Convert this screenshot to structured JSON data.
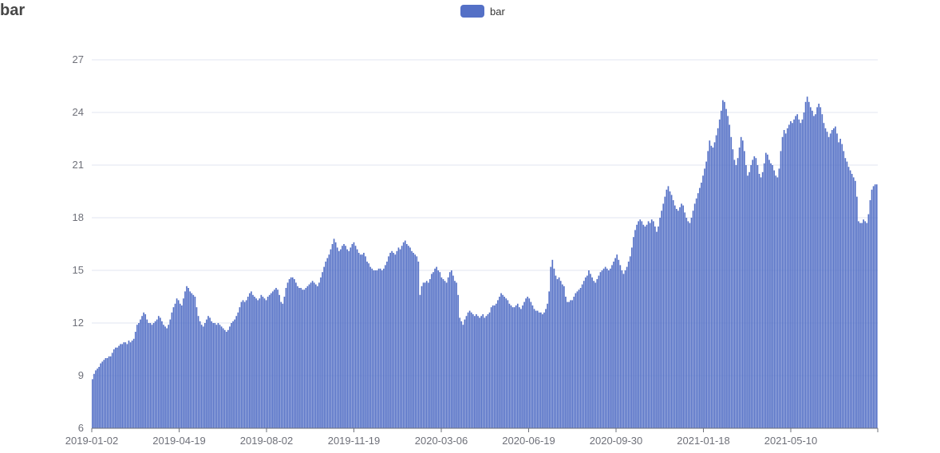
{
  "chart_data": {
    "type": "bar",
    "title": "bar",
    "legend": {
      "position": "top-center",
      "entries": [
        "bar"
      ]
    },
    "series": [
      {
        "name": "bar",
        "color": "#5470c6"
      }
    ],
    "xlabel": "",
    "ylabel": "",
    "x_range": [
      "2019-01-02",
      "2021-08-20"
    ],
    "x_tick_labels": [
      "2019-01-02",
      "2019-04-19",
      "2019-08-02",
      "2019-11-19",
      "2020-03-06",
      "2020-06-19",
      "2020-09-30",
      "2021-01-18",
      "2021-05-10"
    ],
    "ylim": [
      6,
      27
    ],
    "y_ticks": [
      6,
      9,
      12,
      15,
      18,
      21,
      24,
      27
    ],
    "grid": true,
    "values": [
      8.8,
      9.1,
      9.3,
      9.4,
      9.5,
      9.7,
      9.8,
      9.9,
      10.0,
      10.0,
      10.1,
      10.1,
      10.3,
      10.5,
      10.6,
      10.6,
      10.7,
      10.8,
      10.8,
      10.9,
      10.9,
      10.8,
      11.0,
      10.9,
      11.0,
      11.1,
      11.5,
      11.9,
      12.0,
      12.2,
      12.4,
      12.6,
      12.5,
      12.2,
      12.0,
      12.0,
      11.9,
      12.0,
      12.1,
      12.2,
      12.4,
      12.3,
      12.1,
      11.9,
      11.8,
      11.7,
      11.9,
      12.2,
      12.6,
      12.9,
      13.1,
      13.4,
      13.3,
      13.1,
      13.0,
      13.4,
      13.8,
      14.1,
      14.0,
      13.8,
      13.7,
      13.6,
      13.5,
      12.9,
      12.4,
      12.1,
      11.9,
      11.8,
      12.0,
      12.2,
      12.4,
      12.3,
      12.1,
      12.0,
      12.0,
      11.9,
      12.0,
      11.9,
      11.8,
      11.7,
      11.6,
      11.5,
      11.6,
      11.8,
      12.0,
      12.1,
      12.2,
      12.4,
      12.6,
      12.9,
      13.2,
      13.3,
      13.2,
      13.3,
      13.5,
      13.7,
      13.8,
      13.6,
      13.5,
      13.4,
      13.3,
      13.4,
      13.6,
      13.5,
      13.4,
      13.3,
      13.5,
      13.6,
      13.7,
      13.8,
      13.9,
      14.0,
      13.9,
      13.6,
      13.2,
      13.1,
      13.5,
      14.0,
      14.3,
      14.5,
      14.6,
      14.6,
      14.5,
      14.3,
      14.1,
      14.0,
      14.0,
      13.9,
      13.9,
      14.0,
      14.1,
      14.2,
      14.3,
      14.4,
      14.3,
      14.2,
      14.1,
      14.3,
      14.6,
      14.9,
      15.2,
      15.5,
      15.7,
      15.9,
      16.2,
      16.5,
      16.8,
      16.6,
      16.3,
      16.1,
      16.2,
      16.4,
      16.5,
      16.4,
      16.2,
      16.1,
      16.3,
      16.5,
      16.6,
      16.4,
      16.2,
      16.0,
      15.9,
      15.9,
      16.0,
      15.8,
      15.5,
      15.4,
      15.2,
      15.1,
      15.0,
      15.0,
      15.0,
      15.1,
      15.1,
      15.0,
      15.1,
      15.3,
      15.5,
      15.8,
      16.0,
      16.1,
      16.0,
      15.9,
      16.1,
      16.3,
      16.2,
      16.4,
      16.6,
      16.7,
      16.5,
      16.4,
      16.3,
      16.1,
      16.0,
      15.9,
      15.8,
      15.5,
      13.6,
      14.1,
      14.3,
      14.3,
      14.4,
      14.3,
      14.5,
      14.8,
      14.9,
      15.1,
      15.2,
      15.0,
      14.9,
      14.6,
      14.5,
      14.4,
      14.3,
      14.6,
      14.9,
      15.0,
      14.7,
      14.4,
      14.3,
      13.6,
      12.3,
      12.1,
      11.9,
      12.2,
      12.4,
      12.6,
      12.7,
      12.6,
      12.5,
      12.4,
      12.5,
      12.4,
      12.3,
      12.4,
      12.5,
      12.3,
      12.4,
      12.5,
      12.6,
      12.9,
      13.0,
      13.0,
      13.1,
      13.3,
      13.5,
      13.7,
      13.6,
      13.5,
      13.4,
      13.3,
      13.1,
      13.0,
      12.9,
      12.9,
      13.0,
      13.1,
      12.9,
      12.8,
      13.0,
      13.2,
      13.4,
      13.5,
      13.4,
      13.2,
      13.0,
      12.8,
      12.7,
      12.7,
      12.6,
      12.6,
      12.5,
      12.6,
      12.8,
      13.1,
      13.8,
      15.2,
      15.6,
      15.1,
      14.7,
      14.5,
      14.6,
      14.4,
      14.2,
      14.1,
      13.5,
      13.2,
      13.2,
      13.3,
      13.3,
      13.5,
      13.7,
      13.8,
      13.9,
      14.0,
      14.2,
      14.4,
      14.6,
      14.7,
      15.0,
      14.8,
      14.6,
      14.4,
      14.3,
      14.5,
      14.7,
      14.9,
      15.0,
      15.1,
      15.2,
      15.1,
      15.0,
      15.1,
      15.3,
      15.5,
      15.7,
      15.9,
      15.6,
      15.3,
      15.0,
      14.8,
      15.0,
      15.2,
      15.5,
      15.8,
      16.3,
      16.9,
      17.3,
      17.6,
      17.8,
      17.9,
      17.8,
      17.6,
      17.5,
      17.6,
      17.8,
      17.7,
      17.9,
      17.8,
      17.5,
      17.2,
      17.5,
      18.0,
      18.4,
      18.8,
      19.2,
      19.6,
      19.8,
      19.5,
      19.3,
      19.0,
      18.7,
      18.5,
      18.4,
      18.6,
      18.8,
      18.7,
      18.3,
      18.0,
      17.8,
      17.7,
      18.0,
      18.4,
      18.8,
      19.1,
      19.4,
      19.7,
      20.0,
      20.4,
      20.8,
      21.2,
      21.8,
      22.4,
      22.1,
      22.0,
      22.3,
      22.7,
      23.1,
      23.6,
      24.1,
      24.7,
      24.6,
      24.2,
      23.8,
      23.3,
      22.6,
      21.9,
      21.3,
      21.0,
      21.4,
      22.0,
      22.6,
      22.4,
      21.8,
      21.0,
      20.4,
      20.6,
      21.0,
      21.3,
      21.5,
      21.4,
      21.0,
      20.5,
      20.3,
      20.6,
      21.1,
      21.7,
      21.6,
      21.3,
      21.1,
      21.0,
      20.7,
      20.4,
      20.3,
      20.8,
      21.8,
      22.6,
      23.0,
      22.8,
      23.1,
      23.3,
      23.5,
      23.4,
      23.6,
      23.8,
      23.9,
      23.6,
      23.4,
      23.6,
      24.0,
      24.6,
      24.9,
      24.6,
      24.3,
      24.1,
      23.8,
      23.9,
      24.3,
      24.5,
      24.3,
      23.9,
      23.4,
      23.1,
      22.9,
      22.6,
      22.8,
      23.0,
      23.1,
      23.2,
      22.8,
      22.3,
      22.5,
      22.2,
      21.8,
      21.4,
      21.2,
      20.9,
      20.7,
      20.5,
      20.3,
      20.1,
      19.2,
      17.8,
      17.7,
      17.7,
      17.9,
      17.8,
      17.7,
      18.2,
      19.0,
      19.6,
      19.8,
      19.9,
      19.9
    ]
  }
}
